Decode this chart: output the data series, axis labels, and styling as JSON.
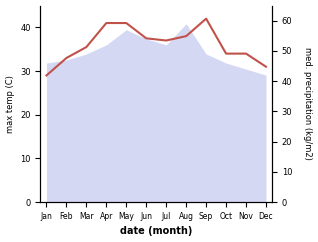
{
  "months": [
    "Jan",
    "Feb",
    "Mar",
    "Apr",
    "May",
    "Jun",
    "Jul",
    "Aug",
    "Sep",
    "Oct",
    "Nov",
    "Dec"
  ],
  "precipitation_raw": [
    46,
    47,
    49,
    52,
    57,
    54,
    52,
    59,
    49,
    46,
    44,
    42
  ],
  "temperature": [
    29,
    33,
    35.5,
    41,
    41,
    37.5,
    37,
    38,
    42,
    34,
    34,
    31
  ],
  "temp_color": "#c0524a",
  "precip_fill_color": "#c8ccf0",
  "precip_fill_alpha": 0.75,
  "ylabel_left": "max temp (C)",
  "ylabel_right": "med. precipitation (kg/m2)",
  "xlabel": "date (month)",
  "ylim_left": [
    0,
    45
  ],
  "ylim_right": [
    0,
    65
  ],
  "yticks_left": [
    0,
    10,
    20,
    30,
    40
  ],
  "yticks_right": [
    0,
    10,
    20,
    30,
    40,
    50,
    60
  ],
  "bg_color": "#ffffff",
  "line_width": 1.5,
  "figsize": [
    3.18,
    2.42
  ],
  "dpi": 100
}
